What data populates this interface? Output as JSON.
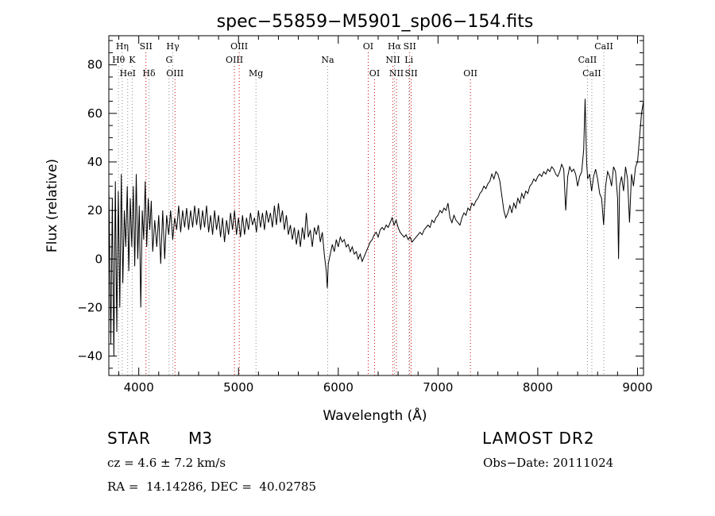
{
  "chart_data": {
    "type": "line",
    "title": "spec−55859−M5901_sp06−154.fits",
    "xlabel": "Wavelength (Å)",
    "ylabel": "Flux (relative)",
    "xlim": [
      3700,
      9060
    ],
    "ylim": [
      -48,
      92
    ],
    "xticks": [
      4000,
      5000,
      6000,
      7000,
      8000,
      9000
    ],
    "xtick_labels": [
      "4000",
      "5000",
      "6000",
      "7000",
      "8000",
      "9000"
    ],
    "yticks": [
      -40,
      -20,
      0,
      20,
      40,
      60,
      80
    ],
    "ytick_labels": [
      "−40",
      "−20",
      "0",
      "20",
      "40",
      "60",
      "80"
    ],
    "grid": false,
    "series": [
      {
        "points": [
          [
            3700,
            30
          ],
          [
            3720,
            -35
          ],
          [
            3735,
            25
          ],
          [
            3750,
            -40
          ],
          [
            3765,
            32
          ],
          [
            3780,
            -30
          ],
          [
            3795,
            28
          ],
          [
            3810,
            -20
          ],
          [
            3825,
            35
          ],
          [
            3840,
            -10
          ],
          [
            3855,
            20
          ],
          [
            3870,
            5
          ],
          [
            3885,
            30
          ],
          [
            3900,
            -5
          ],
          [
            3915,
            25
          ],
          [
            3930,
            5
          ],
          [
            3945,
            30
          ],
          [
            3960,
            -3
          ],
          [
            3975,
            35
          ],
          [
            3990,
            0
          ],
          [
            4005,
            22
          ],
          [
            4020,
            -20
          ],
          [
            4035,
            20
          ],
          [
            4050,
            8
          ],
          [
            4065,
            32
          ],
          [
            4080,
            5
          ],
          [
            4095,
            25
          ],
          [
            4110,
            12
          ],
          [
            4125,
            24
          ],
          [
            4140,
            3
          ],
          [
            4160,
            16
          ],
          [
            4180,
            5
          ],
          [
            4200,
            18
          ],
          [
            4220,
            -2
          ],
          [
            4240,
            20
          ],
          [
            4260,
            0
          ],
          [
            4280,
            18
          ],
          [
            4300,
            10
          ],
          [
            4320,
            20
          ],
          [
            4340,
            8
          ],
          [
            4360,
            17
          ],
          [
            4380,
            12
          ],
          [
            4400,
            22
          ],
          [
            4420,
            11
          ],
          [
            4440,
            20
          ],
          [
            4460,
            13
          ],
          [
            4480,
            21
          ],
          [
            4500,
            12
          ],
          [
            4520,
            20
          ],
          [
            4540,
            13
          ],
          [
            4560,
            22
          ],
          [
            4580,
            14
          ],
          [
            4600,
            21
          ],
          [
            4620,
            12
          ],
          [
            4640,
            20
          ],
          [
            4660,
            13
          ],
          [
            4680,
            22
          ],
          [
            4700,
            11
          ],
          [
            4720,
            18
          ],
          [
            4740,
            10
          ],
          [
            4760,
            20
          ],
          [
            4780,
            12
          ],
          [
            4800,
            18
          ],
          [
            4820,
            9
          ],
          [
            4840,
            17
          ],
          [
            4860,
            7
          ],
          [
            4880,
            16
          ],
          [
            4900,
            10
          ],
          [
            4920,
            19
          ],
          [
            4940,
            12
          ],
          [
            4960,
            20
          ],
          [
            4980,
            10
          ],
          [
            5000,
            17
          ],
          [
            5020,
            9
          ],
          [
            5040,
            18
          ],
          [
            5060,
            10
          ],
          [
            5080,
            17
          ],
          [
            5100,
            12
          ],
          [
            5120,
            19
          ],
          [
            5140,
            14
          ],
          [
            5160,
            17
          ],
          [
            5180,
            11
          ],
          [
            5200,
            20
          ],
          [
            5220,
            13
          ],
          [
            5240,
            19
          ],
          [
            5260,
            12
          ],
          [
            5280,
            20
          ],
          [
            5300,
            15
          ],
          [
            5320,
            19
          ],
          [
            5340,
            13
          ],
          [
            5360,
            22
          ],
          [
            5380,
            14
          ],
          [
            5400,
            23
          ],
          [
            5420,
            15
          ],
          [
            5440,
            20
          ],
          [
            5460,
            12
          ],
          [
            5480,
            18
          ],
          [
            5500,
            10
          ],
          [
            5520,
            14
          ],
          [
            5540,
            8
          ],
          [
            5560,
            13
          ],
          [
            5580,
            6
          ],
          [
            5600,
            12
          ],
          [
            5620,
            5
          ],
          [
            5640,
            13
          ],
          [
            5660,
            8
          ],
          [
            5680,
            19
          ],
          [
            5700,
            9
          ],
          [
            5720,
            12
          ],
          [
            5740,
            5
          ],
          [
            5760,
            13
          ],
          [
            5780,
            10
          ],
          [
            5800,
            14
          ],
          [
            5820,
            7
          ],
          [
            5840,
            11
          ],
          [
            5860,
            2
          ],
          [
            5880,
            -5
          ],
          [
            5890,
            -12
          ],
          [
            5900,
            -2
          ],
          [
            5920,
            2
          ],
          [
            5940,
            6
          ],
          [
            5960,
            3
          ],
          [
            5980,
            8
          ],
          [
            6000,
            5
          ],
          [
            6020,
            9
          ],
          [
            6040,
            7
          ],
          [
            6060,
            8
          ],
          [
            6080,
            5
          ],
          [
            6100,
            6
          ],
          [
            6120,
            3
          ],
          [
            6140,
            5
          ],
          [
            6160,
            2
          ],
          [
            6180,
            3
          ],
          [
            6200,
            0
          ],
          [
            6220,
            2
          ],
          [
            6240,
            -1
          ],
          [
            6260,
            1
          ],
          [
            6280,
            3
          ],
          [
            6300,
            5
          ],
          [
            6320,
            7
          ],
          [
            6340,
            8
          ],
          [
            6360,
            10
          ],
          [
            6380,
            11
          ],
          [
            6400,
            9
          ],
          [
            6420,
            12
          ],
          [
            6440,
            13
          ],
          [
            6460,
            12
          ],
          [
            6480,
            14
          ],
          [
            6500,
            13
          ],
          [
            6520,
            15
          ],
          [
            6540,
            17
          ],
          [
            6560,
            14
          ],
          [
            6580,
            16
          ],
          [
            6600,
            13
          ],
          [
            6620,
            11
          ],
          [
            6640,
            10
          ],
          [
            6660,
            9
          ],
          [
            6680,
            10
          ],
          [
            6700,
            8
          ],
          [
            6720,
            9
          ],
          [
            6740,
            7
          ],
          [
            6760,
            8
          ],
          [
            6780,
            9
          ],
          [
            6800,
            10
          ],
          [
            6820,
            11
          ],
          [
            6840,
            10
          ],
          [
            6860,
            12
          ],
          [
            6880,
            13
          ],
          [
            6900,
            14
          ],
          [
            6920,
            13
          ],
          [
            6940,
            16
          ],
          [
            6960,
            15
          ],
          [
            6980,
            17
          ],
          [
            7000,
            18
          ],
          [
            7020,
            20
          ],
          [
            7040,
            19
          ],
          [
            7060,
            21
          ],
          [
            7080,
            20
          ],
          [
            7100,
            23
          ],
          [
            7120,
            17
          ],
          [
            7140,
            15
          ],
          [
            7160,
            18
          ],
          [
            7180,
            16
          ],
          [
            7200,
            15
          ],
          [
            7220,
            14
          ],
          [
            7240,
            17
          ],
          [
            7260,
            19
          ],
          [
            7280,
            18
          ],
          [
            7300,
            21
          ],
          [
            7320,
            20
          ],
          [
            7340,
            23
          ],
          [
            7360,
            22
          ],
          [
            7380,
            24
          ],
          [
            7400,
            25
          ],
          [
            7420,
            27
          ],
          [
            7440,
            28
          ],
          [
            7460,
            30
          ],
          [
            7480,
            29
          ],
          [
            7500,
            31
          ],
          [
            7520,
            32
          ],
          [
            7540,
            35
          ],
          [
            7560,
            33
          ],
          [
            7580,
            36
          ],
          [
            7600,
            35
          ],
          [
            7620,
            32
          ],
          [
            7640,
            26
          ],
          [
            7660,
            20
          ],
          [
            7680,
            17
          ],
          [
            7700,
            19
          ],
          [
            7720,
            22
          ],
          [
            7740,
            19
          ],
          [
            7760,
            23
          ],
          [
            7780,
            21
          ],
          [
            7800,
            25
          ],
          [
            7820,
            23
          ],
          [
            7840,
            27
          ],
          [
            7860,
            25
          ],
          [
            7880,
            28
          ],
          [
            7900,
            27
          ],
          [
            7920,
            30
          ],
          [
            7940,
            31
          ],
          [
            7960,
            33
          ],
          [
            7980,
            32
          ],
          [
            8000,
            34
          ],
          [
            8020,
            35
          ],
          [
            8040,
            34
          ],
          [
            8060,
            36
          ],
          [
            8080,
            35
          ],
          [
            8100,
            37
          ],
          [
            8120,
            36
          ],
          [
            8140,
            38
          ],
          [
            8160,
            37
          ],
          [
            8180,
            35
          ],
          [
            8200,
            34
          ],
          [
            8220,
            36
          ],
          [
            8240,
            39
          ],
          [
            8260,
            37
          ],
          [
            8280,
            20
          ],
          [
            8300,
            34
          ],
          [
            8320,
            38
          ],
          [
            8340,
            36
          ],
          [
            8360,
            37
          ],
          [
            8380,
            35
          ],
          [
            8400,
            30
          ],
          [
            8420,
            34
          ],
          [
            8440,
            36
          ],
          [
            8460,
            45
          ],
          [
            8475,
            66
          ],
          [
            8490,
            40
          ],
          [
            8500,
            33
          ],
          [
            8520,
            35
          ],
          [
            8540,
            28
          ],
          [
            8560,
            34
          ],
          [
            8580,
            37
          ],
          [
            8600,
            33
          ],
          [
            8620,
            27
          ],
          [
            8640,
            25
          ],
          [
            8660,
            14
          ],
          [
            8680,
            30
          ],
          [
            8700,
            36
          ],
          [
            8720,
            34
          ],
          [
            8740,
            30
          ],
          [
            8760,
            38
          ],
          [
            8780,
            36
          ],
          [
            8800,
            25
          ],
          [
            8810,
            0
          ],
          [
            8820,
            30
          ],
          [
            8840,
            34
          ],
          [
            8860,
            28
          ],
          [
            8880,
            38
          ],
          [
            8900,
            33
          ],
          [
            8920,
            15
          ],
          [
            8940,
            35
          ],
          [
            8960,
            30
          ],
          [
            8980,
            38
          ],
          [
            9000,
            40
          ],
          [
            9020,
            50
          ],
          [
            9040,
            60
          ],
          [
            9060,
            65
          ]
        ]
      }
    ],
    "line_colors": {
      "spectrum": "#000000",
      "emission": "#cc0000",
      "absorption": "#8a8a8a"
    },
    "line_annotations": [
      {
        "label": "Hη",
        "x": 3835,
        "row": 0,
        "kind": "absorption"
      },
      {
        "label": "Hθ",
        "x": 3797,
        "row": 1,
        "kind": "absorption"
      },
      {
        "label": "HeI",
        "x": 3889,
        "row": 2,
        "kind": "absorption"
      },
      {
        "label": "SII",
        "x": 4072,
        "row": 0,
        "kind": "emission"
      },
      {
        "label": "K",
        "x": 3934,
        "row": 1,
        "kind": "absorption"
      },
      {
        "label": "Hδ",
        "x": 4102,
        "row": 2,
        "kind": "absorption"
      },
      {
        "label": "Hγ",
        "x": 4341,
        "row": 0,
        "kind": "absorption"
      },
      {
        "label": "G",
        "x": 4304,
        "row": 1,
        "kind": "absorption"
      },
      {
        "label": "OIII",
        "x": 4363,
        "row": 2,
        "kind": "emission"
      },
      {
        "label": "OIII",
        "x": 5007,
        "row": 0,
        "kind": "emission"
      },
      {
        "label": "OIII",
        "x": 4959,
        "row": 1,
        "kind": "emission"
      },
      {
        "label": "Mg",
        "x": 5175,
        "row": 2,
        "kind": "absorption"
      },
      {
        "label": "Na",
        "x": 5894,
        "row": 1,
        "kind": "absorption"
      },
      {
        "label": "OI",
        "x": 6300,
        "row": 0,
        "kind": "emission"
      },
      {
        "label": "OI",
        "x": 6364,
        "row": 2,
        "kind": "emission"
      },
      {
        "label": "Hα",
        "x": 6563,
        "row": 0,
        "kind": "absorption"
      },
      {
        "label": "SII",
        "x": 6716,
        "row": 0,
        "kind": "emission"
      },
      {
        "label": "NII",
        "x": 6548,
        "row": 1,
        "kind": "emission"
      },
      {
        "label": "Li",
        "x": 6708,
        "row": 1,
        "kind": "absorption"
      },
      {
        "label": "NII",
        "x": 6583,
        "row": 2,
        "kind": "emission"
      },
      {
        "label": "SII",
        "x": 6731,
        "row": 2,
        "kind": "emission"
      },
      {
        "label": "OII",
        "x": 7325,
        "row": 2,
        "kind": "emission"
      },
      {
        "label": "CaII",
        "x": 8662,
        "row": 0,
        "kind": "absorption"
      },
      {
        "label": "CaII",
        "x": 8498,
        "row": 1,
        "kind": "absorption"
      },
      {
        "label": "CaII",
        "x": 8542,
        "row": 2,
        "kind": "absorption"
      }
    ]
  },
  "info": {
    "object_type": "STAR",
    "subclass": "M3",
    "survey": "LAMOST DR2",
    "cz": "cz = 4.6 ± 7.2 km/s",
    "obs_date": "Obs−Date: 20111024",
    "radec": "RA =  14.14286, DEC =  40.02785"
  }
}
